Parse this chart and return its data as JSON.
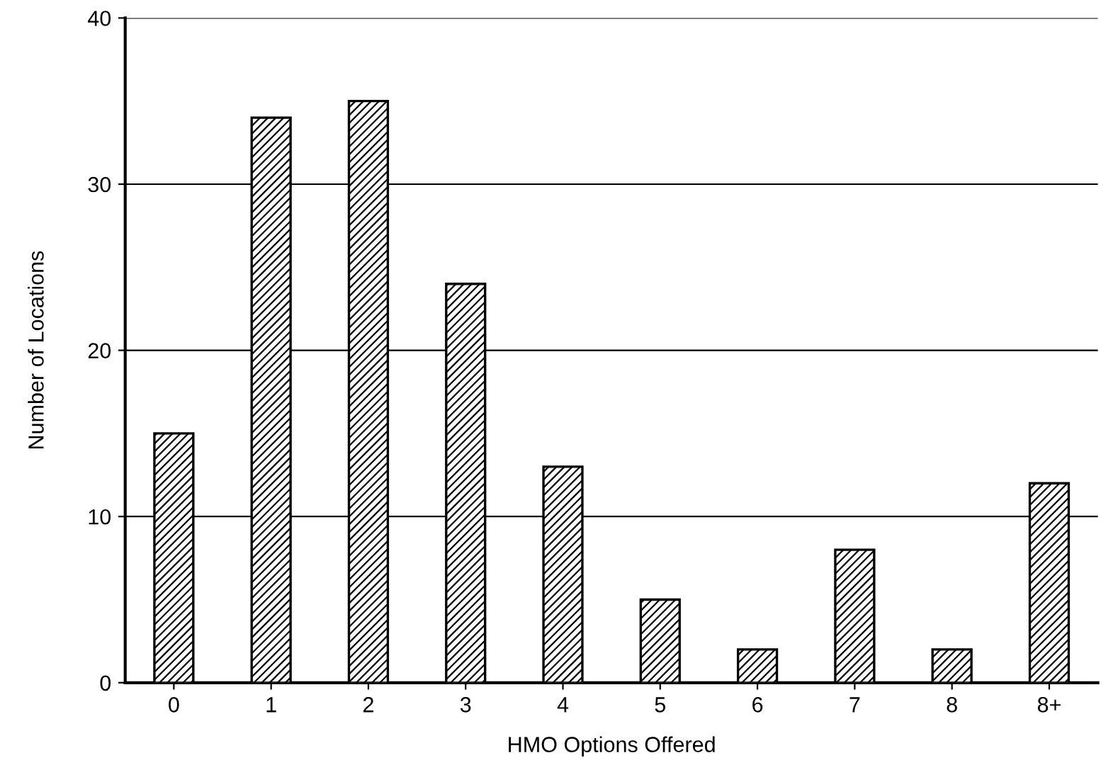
{
  "chart_data": {
    "type": "bar",
    "xlabel": "HMO Options Offered",
    "ylabel": "Number of Locations",
    "categories": [
      "0",
      "1",
      "2",
      "3",
      "4",
      "5",
      "6",
      "7",
      "8",
      "8+"
    ],
    "values": [
      15,
      34,
      35,
      24,
      13,
      5,
      2,
      8,
      2,
      12
    ],
    "color": "#000000",
    "ylim": [
      0,
      40
    ],
    "yticks": [
      0,
      10,
      20,
      30,
      40
    ],
    "grid": "y"
  }
}
